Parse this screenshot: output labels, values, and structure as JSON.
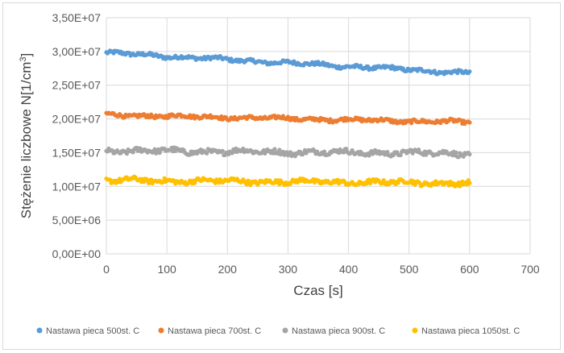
{
  "chart_data": {
    "type": "scatter",
    "title": "",
    "xlabel": "Czas [s]",
    "ylabel": "Stężenie liczbowe N[1/cm",
    "ylabel_sup": "3",
    "ylabel_end": "]",
    "xlim": [
      0,
      700
    ],
    "ylim": [
      0,
      35000000
    ],
    "x_ticks": [
      0,
      100,
      200,
      300,
      400,
      500,
      600,
      700
    ],
    "x_tick_labels": [
      "0",
      "100",
      "200",
      "300",
      "400",
      "500",
      "600",
      "700"
    ],
    "y_ticks": [
      0,
      5000000,
      10000000,
      15000000,
      20000000,
      25000000,
      30000000,
      35000000
    ],
    "y_tick_labels": [
      "0,00E+00",
      "5,00E+06",
      "1,00E+07",
      "1,50E+07",
      "2,00E+07",
      "2,50E+07",
      "3,00E+07",
      "3,50E+07"
    ],
    "grid": "major gridlines on both axes",
    "legend_position": "bottom",
    "x_range": [
      0,
      600
    ],
    "x_step": 2,
    "series": [
      {
        "name": "Nastawa pieca 500st. C",
        "color": "#5b9bd5",
        "start": 29800000,
        "end": 26800000,
        "noise": 500000
      },
      {
        "name": "Nastawa pieca 700st. C",
        "color": "#ed7d31",
        "start": 20600000,
        "end": 19500000,
        "noise": 500000
      },
      {
        "name": "Nastawa pieca 900st. C",
        "color": "#a5a5a5",
        "start": 15300000,
        "end": 14900000,
        "noise": 700000
      },
      {
        "name": "Nastawa pieca 1050st. C",
        "color": "#ffc000",
        "start": 10900000,
        "end": 10500000,
        "noise": 650000
      }
    ]
  }
}
